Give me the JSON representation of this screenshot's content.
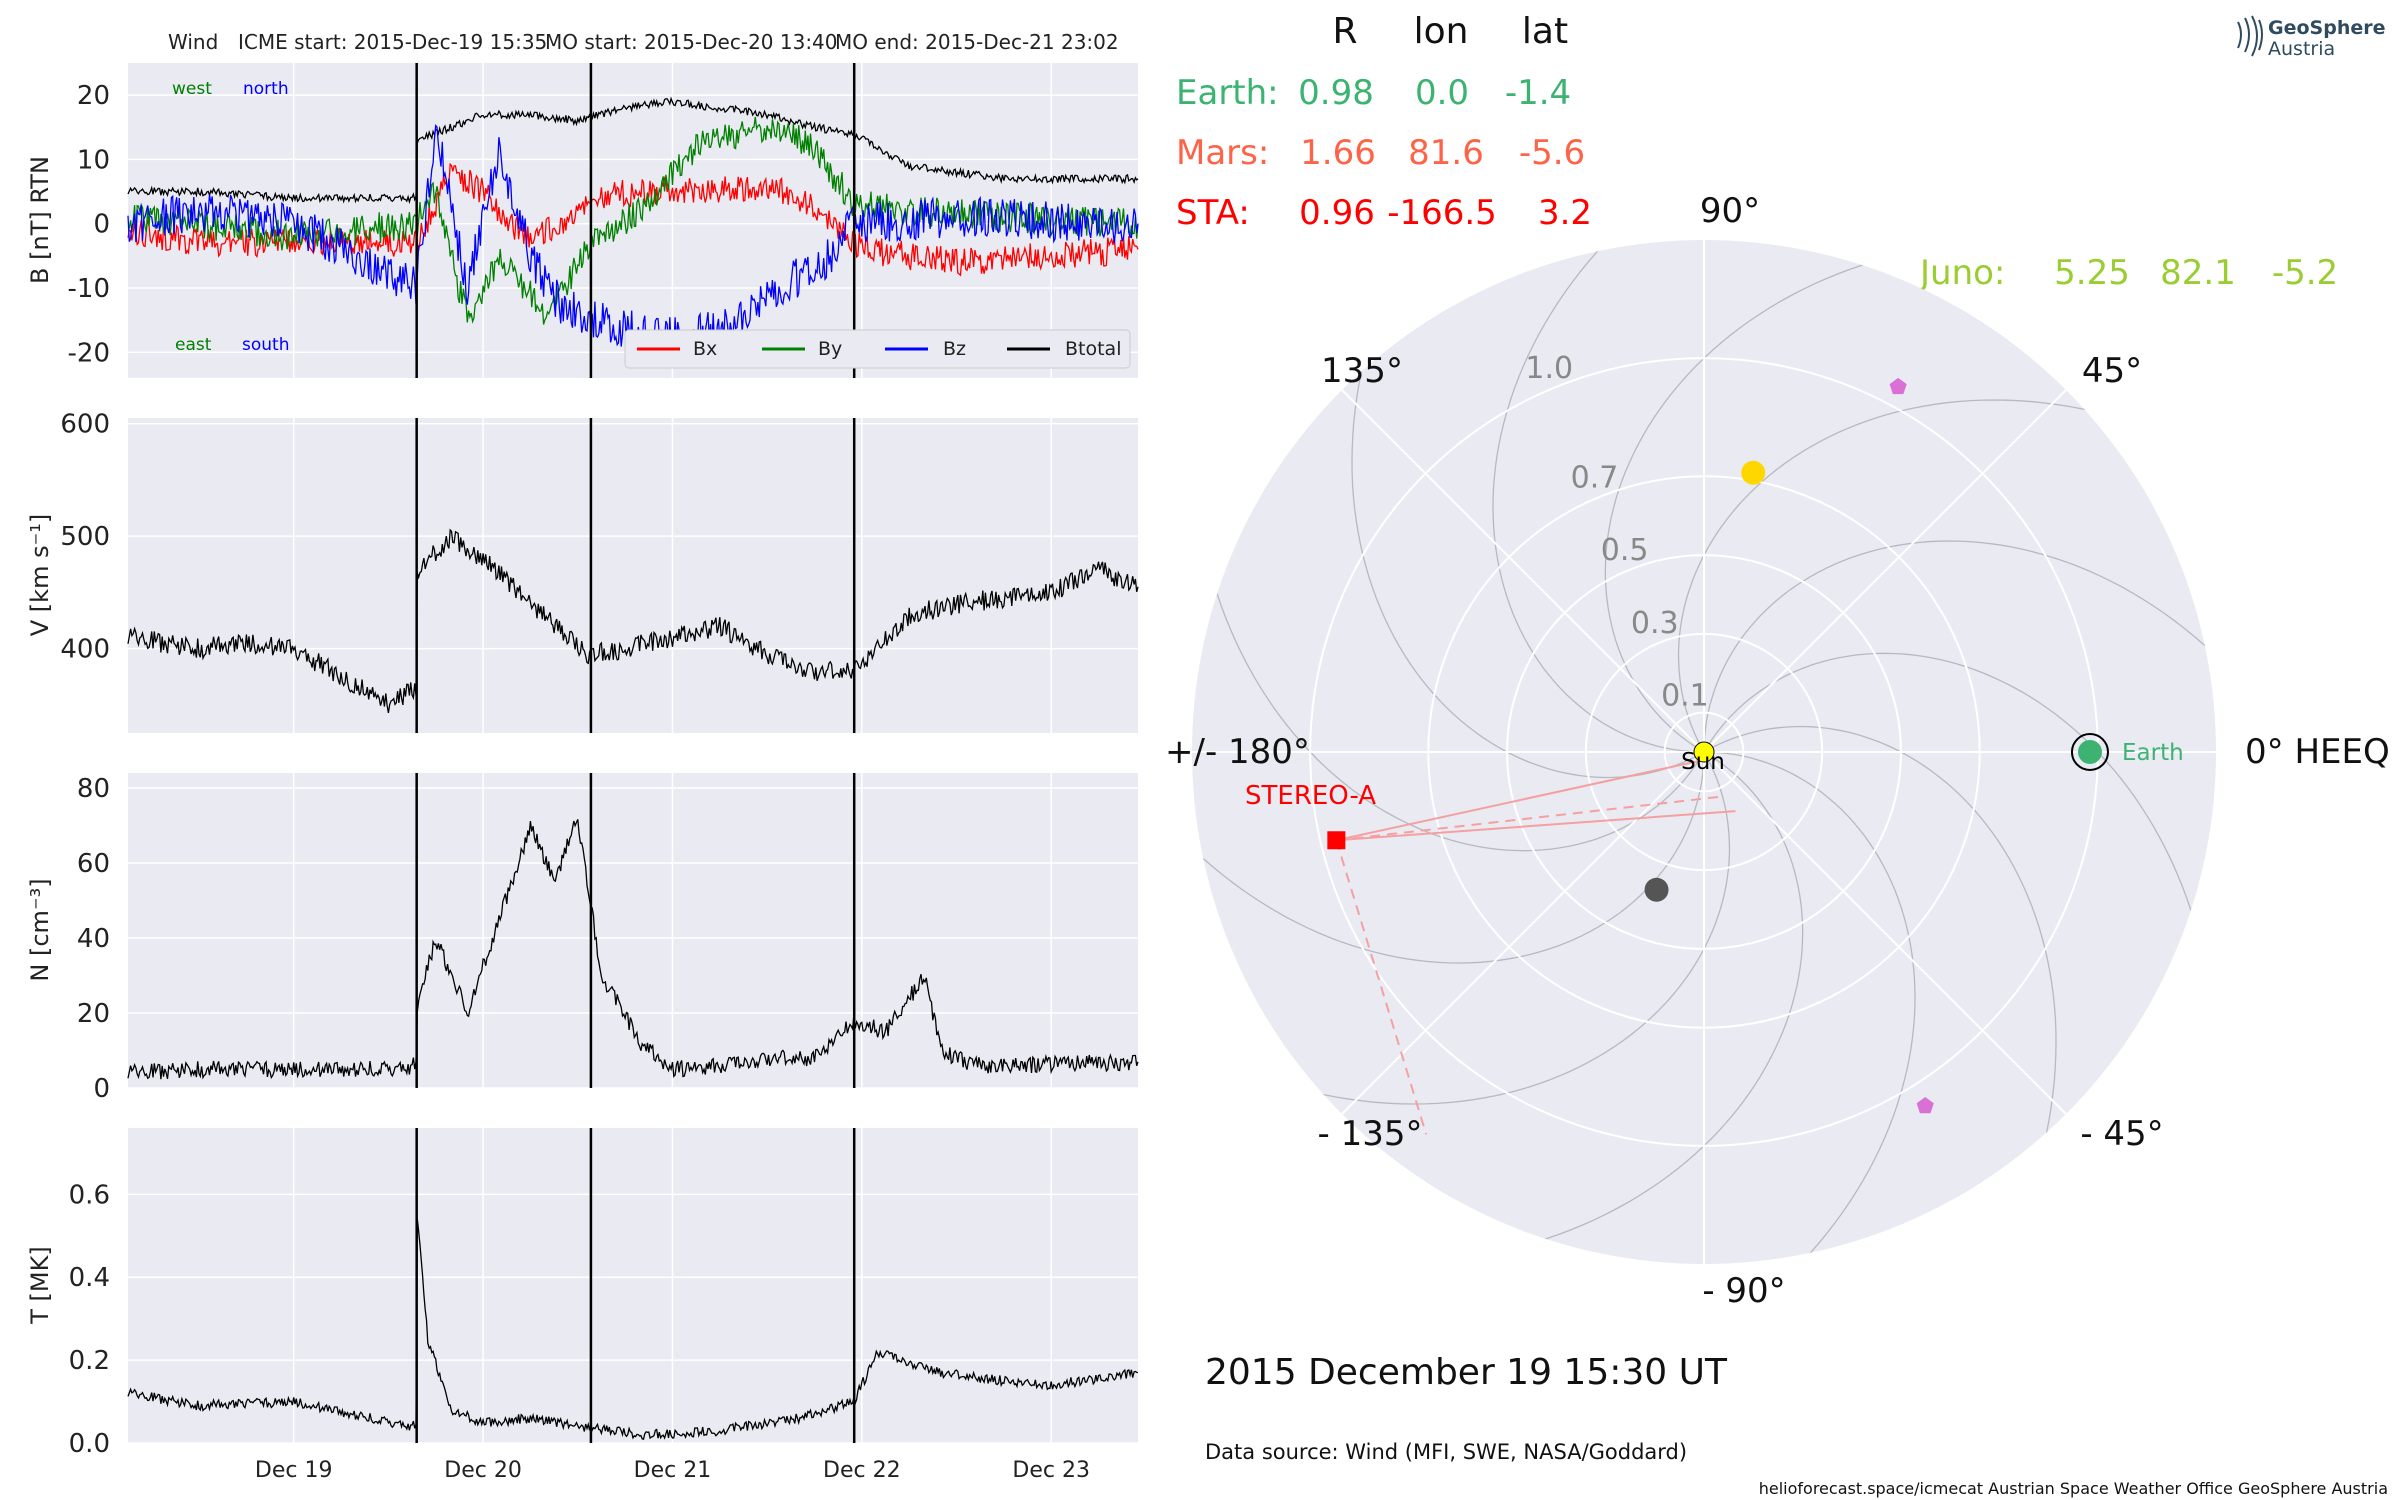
{
  "header": {
    "spacecraft": "Wind",
    "icme_start": "ICME start: 2015-Dec-19 15:35",
    "mo_start": "MO start: 2015-Dec-20 13:40",
    "mo_end": "MO end: 2015-Dec-21 23:02"
  },
  "logo": {
    "line1": "GeoSphere",
    "line2": "Austria"
  },
  "colors": {
    "bx": "#ff0000",
    "by": "#008000",
    "bz": "#0000ff",
    "btotal": "#000000",
    "earth": "#3cb371",
    "mars": "#ff6347",
    "sta": "#ff0000",
    "juno": "#9acd32",
    "sun": "#ffff00",
    "panel_bg": "#eaeaf2",
    "grid": "#ffffff",
    "dark_planet": "#555555",
    "pentagon": "#da70d6"
  },
  "chart_data": [
    {
      "type": "line",
      "id": "magnetic_field",
      "ylabel": "B [nT] RTN",
      "ylim": [
        -24,
        25
      ],
      "yticks": [
        20,
        10,
        0,
        -10,
        -20
      ],
      "xlim": [
        "2015-12-18 03:00",
        "2015-12-23 11:00"
      ],
      "xticks": [
        "Dec 19",
        "Dec 20",
        "Dec 21",
        "Dec 22",
        "Dec 23"
      ],
      "event_lines": [
        "2015-12-19 15:35",
        "2015-12-20 13:40",
        "2015-12-21 23:02"
      ],
      "corner_labels": {
        "top_left_1": "west",
        "top_left_2": "north",
        "bottom_left_1": "east",
        "bottom_left_2": "south"
      },
      "legend": [
        "Bx",
        "By",
        "Bz",
        "Btotal"
      ],
      "series": [
        {
          "name": "Btotal",
          "x": [
            "2015-12-18 03:00",
            "2015-12-18 12:00",
            "2015-12-19 00:00",
            "2015-12-19 12:00",
            "2015-12-19 15:30",
            "2015-12-19 15:40",
            "2015-12-19 20:00",
            "2015-12-20 00:00",
            "2015-12-20 06:00",
            "2015-12-20 12:00",
            "2015-12-20 18:00",
            "2015-12-21 00:00",
            "2015-12-21 06:00",
            "2015-12-21 12:00",
            "2015-12-21 18:00",
            "2015-12-21 23:00",
            "2015-12-22 06:00",
            "2015-12-22 18:00",
            "2015-12-23 11:00"
          ],
          "values": [
            5,
            5,
            4,
            4,
            4,
            13,
            15,
            17,
            17,
            16,
            18,
            19,
            18,
            17,
            15,
            14,
            9,
            7,
            7
          ]
        },
        {
          "name": "Bx",
          "x": [
            "2015-12-18 03:00",
            "2015-12-18 12:00",
            "2015-12-19 00:00",
            "2015-12-19 15:30",
            "2015-12-19 20:00",
            "2015-12-20 00:00",
            "2015-12-20 06:00",
            "2015-12-20 14:00",
            "2015-12-20 20:00",
            "2015-12-21 04:00",
            "2015-12-21 12:00",
            "2015-12-21 18:00",
            "2015-12-22 00:00",
            "2015-12-22 12:00",
            "2015-12-23 11:00"
          ],
          "values": [
            -1,
            -3,
            -3,
            -3,
            8,
            5,
            -3,
            4,
            5,
            5,
            6,
            3,
            -4,
            -6,
            -4
          ]
        },
        {
          "name": "By",
          "x": [
            "2015-12-18 03:00",
            "2015-12-18 12:00",
            "2015-12-19 00:00",
            "2015-12-19 15:30",
            "2015-12-19 18:00",
            "2015-12-19 22:00",
            "2015-12-20 02:00",
            "2015-12-20 08:00",
            "2015-12-20 14:00",
            "2015-12-20 20:00",
            "2015-12-21 04:00",
            "2015-12-21 12:00",
            "2015-12-21 18:00",
            "2015-12-21 23:00",
            "2015-12-22 06:00",
            "2015-12-22 18:00",
            "2015-12-23 11:00"
          ],
          "values": [
            1,
            0,
            -2,
            0,
            5,
            -15,
            -5,
            -14,
            -3,
            2,
            13,
            15,
            12,
            3,
            2,
            1,
            0
          ]
        },
        {
          "name": "Bz",
          "x": [
            "2015-12-18 03:00",
            "2015-12-18 12:00",
            "2015-12-19 00:00",
            "2015-12-19 15:30",
            "2015-12-19 18:00",
            "2015-12-19 22:00",
            "2015-12-20 02:00",
            "2015-12-20 06:00",
            "2015-12-20 10:00",
            "2015-12-20 14:00",
            "2015-12-20 20:00",
            "2015-12-21 02:00",
            "2015-12-21 08:00",
            "2015-12-21 14:00",
            "2015-12-21 20:00",
            "2015-12-21 23:00",
            "2015-12-22 12:00",
            "2015-12-23 11:00"
          ],
          "values": [
            0,
            2,
            0,
            -10,
            15,
            -10,
            12,
            -5,
            -13,
            -15,
            -17,
            -18,
            -15,
            -10,
            -5,
            0,
            1,
            0
          ]
        }
      ]
    },
    {
      "type": "line",
      "id": "speed",
      "ylabel": "V [km s⁻¹]",
      "ylim": [
        325,
        605
      ],
      "yticks": [
        600,
        500,
        400
      ],
      "xticks": [
        "Dec 19",
        "Dec 20",
        "Dec 21",
        "Dec 22",
        "Dec 23"
      ],
      "series": [
        {
          "name": "V",
          "x": [
            "2015-12-18 03:00",
            "2015-12-18 12:00",
            "2015-12-18 18:00",
            "2015-12-19 00:00",
            "2015-12-19 06:00",
            "2015-12-19 12:00",
            "2015-12-19 15:30",
            "2015-12-19 15:40",
            "2015-12-19 20:00",
            "2015-12-20 00:00",
            "2015-12-20 06:00",
            "2015-12-20 13:00",
            "2015-12-20 18:00",
            "2015-12-21 00:00",
            "2015-12-21 06:00",
            "2015-12-21 12:00",
            "2015-12-21 18:00",
            "2015-12-21 23:00",
            "2015-12-22 06:00",
            "2015-12-22 12:00",
            "2015-12-22 18:00",
            "2015-12-23 00:00",
            "2015-12-23 06:00",
            "2015-12-23 11:00"
          ],
          "values": [
            410,
            400,
            405,
            400,
            375,
            350,
            365,
            470,
            500,
            480,
            440,
            395,
            400,
            410,
            420,
            395,
            380,
            380,
            430,
            440,
            445,
            450,
            470,
            455
          ]
        }
      ]
    },
    {
      "type": "line",
      "id": "density",
      "ylabel": "N [cm⁻³]",
      "ylim": [
        0,
        84
      ],
      "yticks": [
        80,
        60,
        40,
        20,
        0
      ],
      "xticks": [
        "Dec 19",
        "Dec 20",
        "Dec 21",
        "Dec 22",
        "Dec 23"
      ],
      "series": [
        {
          "name": "N",
          "x": [
            "2015-12-18 03:00",
            "2015-12-18 12:00",
            "2015-12-19 00:00",
            "2015-12-19 12:00",
            "2015-12-19 15:30",
            "2015-12-19 15:40",
            "2015-12-19 18:00",
            "2015-12-19 22:00",
            "2015-12-20 02:00",
            "2015-12-20 06:00",
            "2015-12-20 09:00",
            "2015-12-20 12:00",
            "2015-12-20 15:00",
            "2015-12-20 20:00",
            "2015-12-21 00:00",
            "2015-12-21 06:00",
            "2015-12-21 12:00",
            "2015-12-21 18:00",
            "2015-12-21 23:00",
            "2015-12-22 03:00",
            "2015-12-22 08:00",
            "2015-12-22 10:00",
            "2015-12-22 14:00",
            "2015-12-22 18:00",
            "2015-12-23 11:00"
          ],
          "values": [
            4,
            5,
            5,
            5,
            6,
            22,
            40,
            20,
            45,
            70,
            55,
            72,
            30,
            12,
            5,
            6,
            8,
            8,
            18,
            15,
            30,
            10,
            6,
            6,
            7
          ]
        }
      ]
    },
    {
      "type": "line",
      "id": "temperature",
      "ylabel": "T [MK]",
      "ylim": [
        0,
        0.76
      ],
      "yticks": [
        0.6,
        0.4,
        0.2,
        0.0
      ],
      "xticks": [
        "Dec 19",
        "Dec 20",
        "Dec 21",
        "Dec 22",
        "Dec 23"
      ],
      "series": [
        {
          "name": "T",
          "x": [
            "2015-12-18 03:00",
            "2015-12-18 12:00",
            "2015-12-19 00:00",
            "2015-12-19 12:00",
            "2015-12-19 15:30",
            "2015-12-19 15:40",
            "2015-12-19 17:00",
            "2015-12-19 20:00",
            "2015-12-20 00:00",
            "2015-12-20 06:00",
            "2015-12-20 12:00",
            "2015-12-20 20:00",
            "2015-12-21 06:00",
            "2015-12-21 16:00",
            "2015-12-21 23:00",
            "2015-12-22 02:00",
            "2015-12-22 10:00",
            "2015-12-22 18:00",
            "2015-12-23 00:00",
            "2015-12-23 11:00"
          ],
          "values": [
            0.12,
            0.09,
            0.1,
            0.05,
            0.04,
            0.55,
            0.25,
            0.08,
            0.05,
            0.06,
            0.04,
            0.02,
            0.03,
            0.06,
            0.1,
            0.22,
            0.17,
            0.15,
            0.14,
            0.17
          ]
        }
      ]
    },
    {
      "type": "scatter",
      "id": "polar_position",
      "projection": "polar",
      "r_labels": [
        "0.1",
        "0.3",
        "0.5",
        "0.7",
        "1.0"
      ],
      "r_ticks": [
        0.1,
        0.3,
        0.5,
        0.7,
        1.0
      ],
      "angle_labels": {
        "a90": "90°",
        "a45": "45°",
        "a0": "0° HEEQ",
        "am45": "- 45°",
        "am90": "- 90°",
        "am135": "- 135°",
        "a180": "+/- 180°",
        "a135": "135°"
      },
      "sun_label": "Sun",
      "earth_label": "Earth",
      "sta_label": "STEREO-A",
      "table": {
        "headers": [
          "R",
          "lon",
          "lat"
        ],
        "rows": [
          {
            "name": "Earth:",
            "R": "0.98",
            "lon": "0.0",
            "lat": "-1.4"
          },
          {
            "name": "Mars:",
            "R": "1.66",
            "lon": "81.6",
            "lat": "-5.6"
          },
          {
            "name": "STA:",
            "R": "0.96",
            "lon": "-166.5",
            "lat": "3.2"
          }
        ],
        "juno": {
          "name": "Juno:",
          "R": "5.25",
          "lon": "82.1",
          "lat": "-5.2"
        }
      },
      "points": [
        {
          "name": "Sun",
          "r": 0.0,
          "lon": 0
        },
        {
          "name": "Earth",
          "r": 0.98,
          "lon": 0.0
        },
        {
          "name": "STEREO-A",
          "r": 0.96,
          "lon": -166.5
        },
        {
          "name": "yellow",
          "r": 0.72,
          "lon": 80.0
        },
        {
          "name": "dark",
          "r": 0.37,
          "lon": -109.0
        },
        {
          "name": "pentagon-upper",
          "r": 1.05,
          "lon": 62.0
        },
        {
          "name": "pentagon-lower",
          "r": 1.06,
          "lon": -58.0
        }
      ],
      "date_label": "2015 December 19  15:30 UT",
      "source": "Data source: Wind (MFI, SWE, NASA/Goddard)"
    }
  ],
  "footer": "helioforecast.space/icmecat   Austrian Space Weather Office   GeoSphere Austria"
}
